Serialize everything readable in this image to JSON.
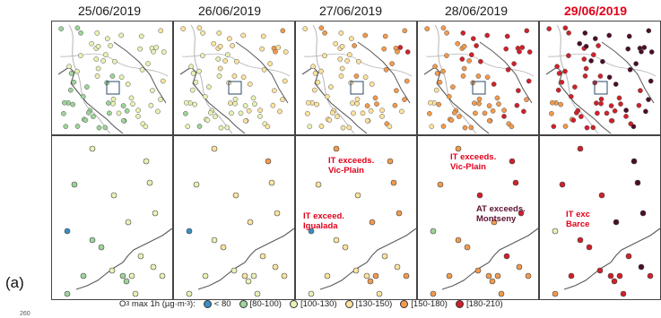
{
  "dates": [
    "25/06/2019",
    "26/06/2019",
    "27/06/2019",
    "28/06/2019",
    "29/06/2019"
  ],
  "highlight_date_index": 4,
  "panel_label": "(a)",
  "y_axis_tick": "260",
  "annotations": [
    {
      "day": 2,
      "line1": "IT exceeds.",
      "line2": "Vic-Plain",
      "color": "#e0001a"
    },
    {
      "day": 2,
      "line1": "IT exceed.",
      "line2": "Igualada",
      "color": "#e0001a"
    },
    {
      "day": 3,
      "line1": "IT exceeds.",
      "line2": "Vic-Plain",
      "color": "#e0001a"
    },
    {
      "day": 3,
      "line1": "AT exceeds.",
      "line2": "Montseny",
      "color": "#5c1030"
    },
    {
      "day": 4,
      "line1": "IT exc",
      "line2": "Barce",
      "color": "#e0001a"
    }
  ],
  "legend": {
    "title_prefix": "O",
    "title_sub": "3",
    "title_mid": " max 1h (µg·m",
    "title_sup": "-3",
    "title_suffix": "):",
    "items": [
      {
        "label": "< 80",
        "color": "#3a8fc0"
      },
      {
        "label": "[80-100)",
        "color": "#9ed49a"
      },
      {
        "label": "[100-130)",
        "color": "#e8f2b5"
      },
      {
        "label": "[130-150)",
        "color": "#fbe3a0"
      },
      {
        "label": "[150-180)",
        "color": "#f29a4c"
      },
      {
        "label": "[180-210)",
        "color": "#d0202a"
      }
    ]
  },
  "colors": {
    "coast": "#5a5a5a",
    "border": "#b5b5b5",
    "highlight": "#e0001a",
    "extreme": "#4a0e2a"
  }
}
